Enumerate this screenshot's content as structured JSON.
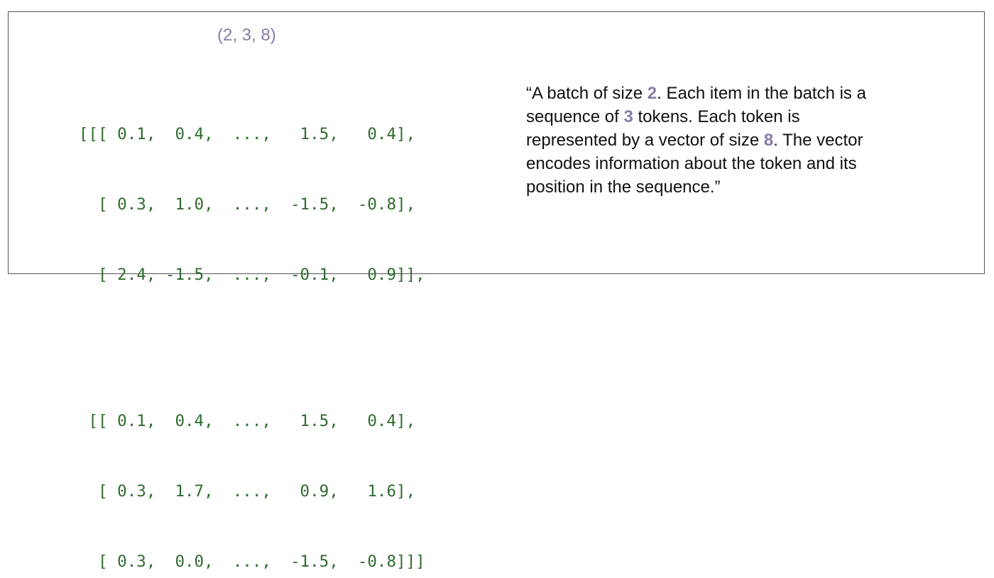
{
  "shape_label": "(2, 3, 8)",
  "tensor": {
    "batch1": [
      "[[[ 0.1,  0.4,  ...,   1.5,   0.4],",
      "  [ 0.3,  1.0,  ...,  -1.5,  -0.8],",
      "  [ 2.4, -1.5,  ...,  -0.1,   0.9]],"
    ],
    "batch2": [
      " [[ 0.1,  0.4,  ...,   1.5,   0.4],",
      "  [ 0.3,  1.7,  ...,   0.9,   1.6],",
      "  [ 0.3,  0.0,  ...,  -1.5,  -0.8]]]"
    ]
  },
  "caption": {
    "part1": "“A batch of size ",
    "batch_size": "2",
    "part2": ". Each item in the batch is a sequence of ",
    "seq_len": "3",
    "part3": " tokens. Each token is represented by a vector of size ",
    "vec_size": "8",
    "part4": ". The vector encodes information about the token and its position in the sequence.”"
  },
  "colors": {
    "accent_purple": "#8a7aa6",
    "code_green": "#2f6b2f",
    "border": "#555555"
  }
}
